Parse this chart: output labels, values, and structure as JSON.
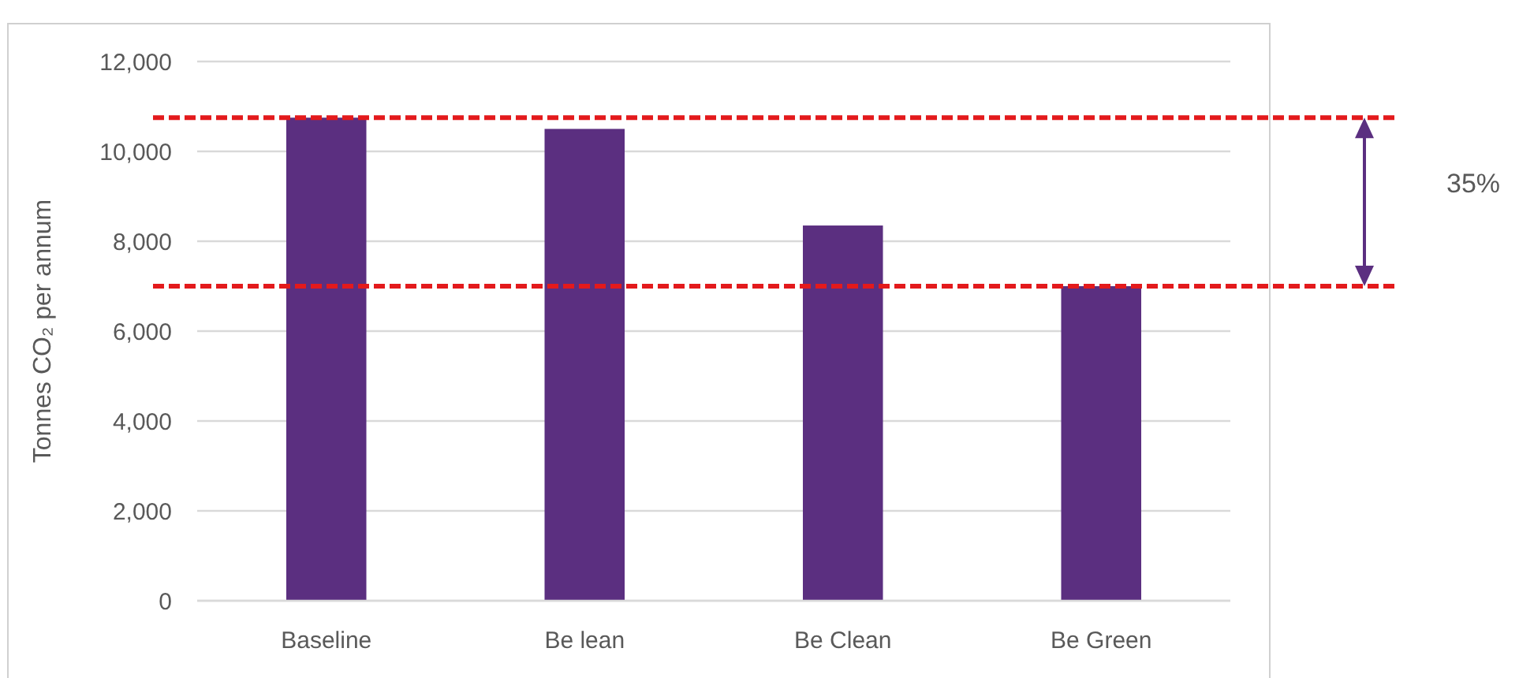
{
  "chart_data": {
    "type": "bar",
    "ylabel": "Tonnes CO₂ per annum",
    "categories": [
      "Baseline",
      "Be lean",
      "Be Clean",
      "Be Green"
    ],
    "values": [
      10750,
      10500,
      8350,
      7000
    ],
    "color": "#5b2f80",
    "ylim": [
      0,
      12000
    ],
    "yticks": [
      {
        "value": 0,
        "label": "0"
      },
      {
        "value": 2000,
        "label": "2,000"
      },
      {
        "value": 4000,
        "label": "4,000"
      },
      {
        "value": 6000,
        "label": "6,000"
      },
      {
        "value": 8000,
        "label": "8,000"
      },
      {
        "value": 10000,
        "label": "10,000"
      },
      {
        "value": 12000,
        "label": "12,000"
      }
    ],
    "grid": "y",
    "ref_lines": [
      {
        "axis": "y",
        "value": 10750,
        "color": "#e31a1c",
        "line_style": "dashed"
      },
      {
        "axis": "y",
        "value": 7000,
        "color": "#e31a1c",
        "line_style": "dashed"
      }
    ],
    "annotations": [
      "35%"
    ]
  }
}
